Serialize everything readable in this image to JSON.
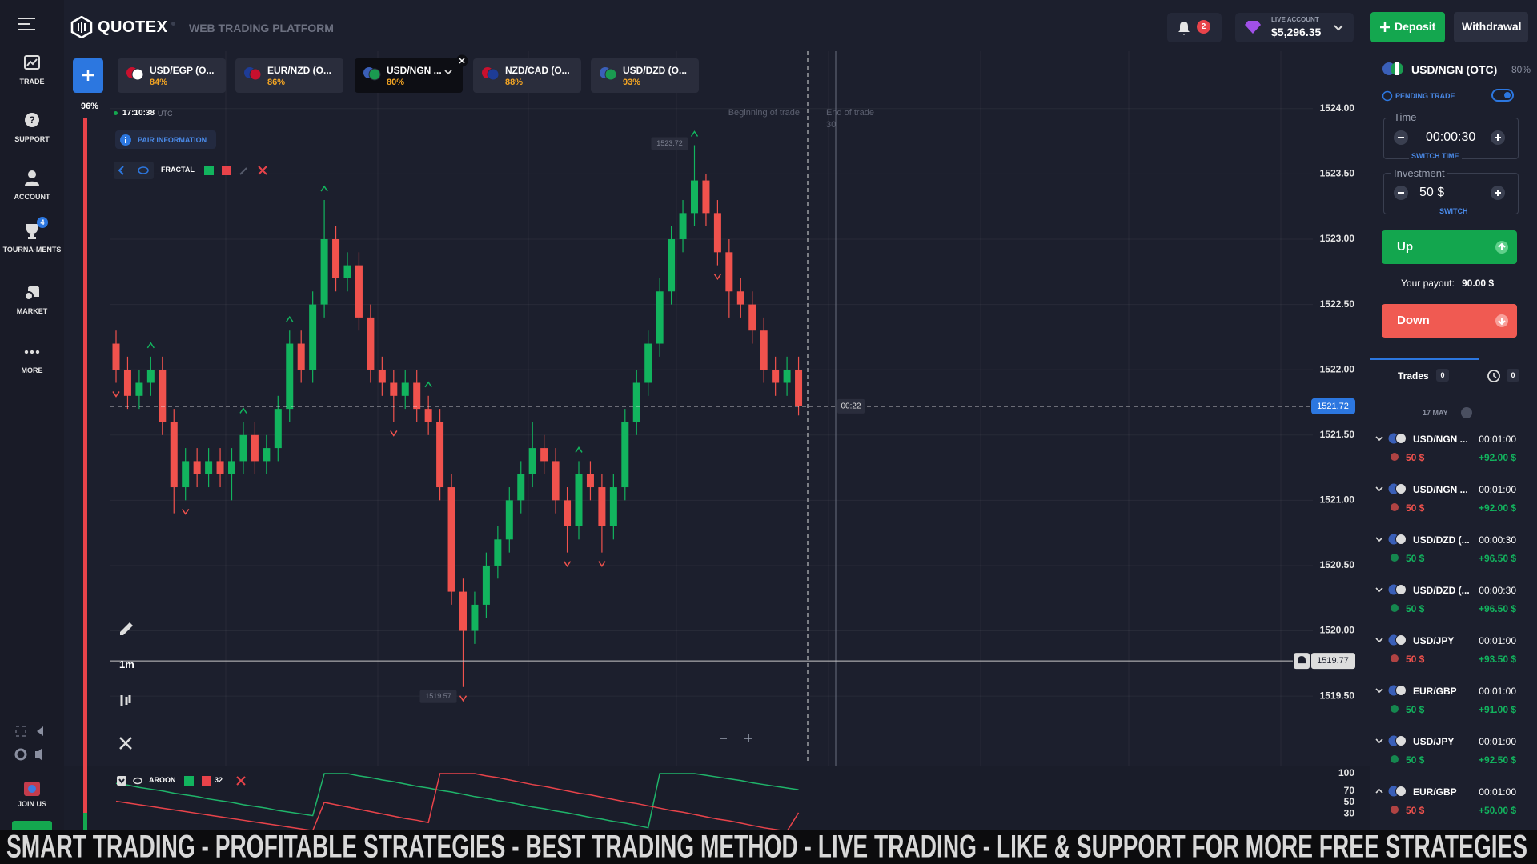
{
  "header": {
    "brand": "QUOTEX",
    "subtitle": "WEB TRADING PLATFORM",
    "notifications": "2",
    "account_label": "LIVE ACCOUNT",
    "balance": "$5,296.35",
    "deposit": "Deposit",
    "withdrawal": "Withdrawal"
  },
  "sidebar": {
    "items": [
      {
        "label": "TRADE"
      },
      {
        "label": "SUPPORT"
      },
      {
        "label": "ACCOUNT"
      },
      {
        "label": "TOURNA-MENTS",
        "badge": "4"
      },
      {
        "label": "MARKET"
      },
      {
        "label": "MORE"
      }
    ],
    "join_us": "JOIN US"
  },
  "tabs": {
    "active": 2,
    "items": [
      {
        "name": "USD/EGP (O...",
        "payout": "84%"
      },
      {
        "name": "EUR/NZD (O...",
        "payout": "86%"
      },
      {
        "name": "USD/NGN ...",
        "payout": "80%"
      },
      {
        "name": "NZD/CAD (O...",
        "payout": "88%"
      },
      {
        "name": "USD/DZD (O...",
        "payout": "93%"
      }
    ]
  },
  "chart": {
    "progress": "96%",
    "time": "17:10:38",
    "timezone": "UTC",
    "pair_info": "PAIR INFORMATION",
    "indicator": "FRACTAL",
    "timeframe": "1m",
    "beginning": "Beginning of trade",
    "end": "End of trade",
    "duration": "30",
    "timer": "00:22",
    "current": 1521.72,
    "alert": 1519.77,
    "up_color": "#12b45e",
    "down_color": "#f0524d",
    "ylim": [
      1518.98,
      1524.44
    ],
    "yticks": [
      {
        "value": 1524,
        "label": "1524.00"
      },
      {
        "value": 1523.5,
        "label": "1523.50"
      },
      {
        "value": 1523,
        "label": "1523.00"
      },
      {
        "value": 1522.5,
        "label": "1522.50"
      },
      {
        "value": 1522,
        "label": "1522.00"
      },
      {
        "value": 1521.5,
        "label": "1521.50"
      },
      {
        "value": 1521,
        "label": "1521.00"
      },
      {
        "value": 1520.5,
        "label": "1520.50"
      },
      {
        "value": 1520,
        "label": "1520.00"
      },
      {
        "value": 1519.5,
        "label": "1519.50"
      }
    ],
    "ohlc": [
      [
        1522.2,
        1522.3,
        1521.9,
        1522.0
      ],
      [
        1522.0,
        1522.1,
        1521.7,
        1521.8
      ],
      [
        1521.8,
        1522.0,
        1521.7,
        1521.9
      ],
      [
        1521.9,
        1522.1,
        1521.8,
        1522.0
      ],
      [
        1522.0,
        1522.1,
        1521.5,
        1521.6
      ],
      [
        1521.6,
        1521.7,
        1520.9,
        1521.1
      ],
      [
        1521.1,
        1521.4,
        1521.0,
        1521.3
      ],
      [
        1521.3,
        1521.4,
        1521.1,
        1521.2
      ],
      [
        1521.2,
        1521.4,
        1521.1,
        1521.3
      ],
      [
        1521.3,
        1521.4,
        1521.1,
        1521.2
      ],
      [
        1521.2,
        1521.4,
        1521.0,
        1521.3
      ],
      [
        1521.3,
        1521.6,
        1521.2,
        1521.5
      ],
      [
        1521.5,
        1521.6,
        1521.2,
        1521.3
      ],
      [
        1521.3,
        1521.5,
        1521.2,
        1521.4
      ],
      [
        1521.4,
        1521.8,
        1521.3,
        1521.7
      ],
      [
        1521.7,
        1522.3,
        1521.6,
        1522.2
      ],
      [
        1522.2,
        1522.3,
        1521.9,
        1522.0
      ],
      [
        1522.0,
        1522.6,
        1521.9,
        1522.5
      ],
      [
        1522.5,
        1523.3,
        1522.4,
        1523.0
      ],
      [
        1523.0,
        1523.1,
        1522.6,
        1522.7
      ],
      [
        1522.7,
        1522.9,
        1522.6,
        1522.8
      ],
      [
        1522.8,
        1522.9,
        1522.3,
        1522.4
      ],
      [
        1522.4,
        1522.5,
        1521.9,
        1522.0
      ],
      [
        1522.0,
        1522.1,
        1521.8,
        1521.9
      ],
      [
        1521.9,
        1522.0,
        1521.6,
        1521.8
      ],
      [
        1521.8,
        1522.0,
        1521.7,
        1521.9
      ],
      [
        1521.9,
        1522.0,
        1521.6,
        1521.7
      ],
      [
        1521.7,
        1521.8,
        1521.5,
        1521.6
      ],
      [
        1521.6,
        1521.7,
        1521.0,
        1521.1
      ],
      [
        1521.1,
        1521.2,
        1520.2,
        1520.3
      ],
      [
        1520.3,
        1520.4,
        1519.57,
        1520.0
      ],
      [
        1520.0,
        1520.3,
        1519.9,
        1520.2
      ],
      [
        1520.2,
        1520.6,
        1520.1,
        1520.5
      ],
      [
        1520.5,
        1520.8,
        1520.4,
        1520.7
      ],
      [
        1520.7,
        1521.1,
        1520.6,
        1521.0
      ],
      [
        1521.0,
        1521.3,
        1520.9,
        1521.2
      ],
      [
        1521.2,
        1521.6,
        1521.1,
        1521.4
      ],
      [
        1521.4,
        1521.5,
        1521.2,
        1521.3
      ],
      [
        1521.3,
        1521.4,
        1520.9,
        1521.0
      ],
      [
        1521.0,
        1521.1,
        1520.6,
        1520.8
      ],
      [
        1520.8,
        1521.3,
        1520.7,
        1521.2
      ],
      [
        1521.2,
        1521.3,
        1521.0,
        1521.1
      ],
      [
        1521.1,
        1521.2,
        1520.6,
        1520.8
      ],
      [
        1520.8,
        1521.2,
        1520.7,
        1521.1
      ],
      [
        1521.1,
        1521.7,
        1521.0,
        1521.6
      ],
      [
        1521.6,
        1522.0,
        1521.5,
        1521.9
      ],
      [
        1521.9,
        1522.3,
        1521.8,
        1522.2
      ],
      [
        1522.2,
        1522.7,
        1522.1,
        1522.6
      ],
      [
        1522.6,
        1523.1,
        1522.5,
        1523.0
      ],
      [
        1523.0,
        1523.3,
        1522.9,
        1523.2
      ],
      [
        1523.2,
        1523.72,
        1523.1,
        1523.45
      ],
      [
        1523.45,
        1523.5,
        1523.1,
        1523.2
      ],
      [
        1523.2,
        1523.3,
        1522.8,
        1522.9
      ],
      [
        1522.9,
        1523.0,
        1522.4,
        1522.6
      ],
      [
        1522.6,
        1522.7,
        1522.4,
        1522.5
      ],
      [
        1522.5,
        1522.6,
        1522.2,
        1522.3
      ],
      [
        1522.3,
        1522.4,
        1521.9,
        1522.0
      ],
      [
        1522.0,
        1522.1,
        1521.8,
        1521.9
      ],
      [
        1521.9,
        1522.1,
        1521.8,
        1522.0
      ],
      [
        1522.0,
        1522.1,
        1521.65,
        1521.72
      ]
    ],
    "aroon": {
      "name": "AROON",
      "period": 32,
      "ylim": [
        0,
        100
      ],
      "yticks": [
        100,
        70,
        50,
        30
      ],
      "up": {
        "color": "#1fb46a",
        "values": [
          83,
          80,
          76,
          73,
          70,
          66,
          63,
          60,
          56,
          53,
          50,
          46,
          43,
          40,
          36,
          33,
          30,
          27,
          100,
          100,
          100,
          96,
          93,
          89,
          86,
          82,
          78,
          75,
          71,
          68,
          64,
          60,
          57,
          53,
          50,
          46,
          42,
          39,
          35,
          32,
          28,
          24,
          21,
          17,
          14,
          10,
          6,
          100,
          100,
          100,
          100,
          97,
          94,
          91,
          88,
          84,
          81,
          78,
          75,
          72
        ]
      },
      "down": {
        "color": "#e8434a",
        "values": [
          52,
          49,
          46,
          43,
          40,
          37,
          34,
          31,
          28,
          25,
          22,
          19,
          16,
          13,
          10,
          7,
          4,
          1,
          50,
          46,
          42,
          38,
          34,
          30,
          26,
          22,
          19,
          15,
          100,
          100,
          100,
          100,
          96,
          93,
          89,
          85,
          81,
          78,
          74,
          70,
          66,
          63,
          59,
          55,
          51,
          48,
          44,
          40,
          36,
          33,
          29,
          25,
          21,
          18,
          14,
          10,
          6,
          3,
          0,
          32
        ]
      }
    }
  },
  "panel": {
    "pair": "USD/NGN (OTC)",
    "payout": "80%",
    "pending": "PENDING TRADE",
    "time_label": "Time",
    "time": "00:00:30",
    "switch_time": "SWITCH TIME",
    "investment_label": "Investment",
    "investment": "50 $",
    "switch": "SWITCH",
    "up": "Up",
    "payout_label": "Your payout:",
    "payout_value": "90.00 $",
    "down": "Down",
    "trades_tab": "Trades",
    "trades_count": 0,
    "history_count": 0,
    "date": "17 MAY",
    "trades": [
      {
        "pair": "USD/NGN ...",
        "duration": "00:01:00",
        "amount": "50 $",
        "profit": "+92.00 $",
        "color": "#f0524d"
      },
      {
        "pair": "USD/NGN ...",
        "duration": "00:01:00",
        "amount": "50 $",
        "profit": "+92.00 $",
        "color": "#f0524d"
      },
      {
        "pair": "USD/DZD (...",
        "duration": "00:00:30",
        "amount": "50 $",
        "profit": "+96.50 $",
        "color": "#12b45e"
      },
      {
        "pair": "USD/DZD (...",
        "duration": "00:00:30",
        "amount": "50 $",
        "profit": "+96.50 $",
        "color": "#12b45e"
      },
      {
        "pair": "USD/JPY",
        "duration": "00:01:00",
        "amount": "50 $",
        "profit": "+93.50 $",
        "color": "#f0524d"
      },
      {
        "pair": "EUR/GBP",
        "duration": "00:01:00",
        "amount": "50 $",
        "profit": "+91.00 $",
        "color": "#12b45e"
      },
      {
        "pair": "USD/JPY",
        "duration": "00:01:00",
        "amount": "50 $",
        "profit": "+92.50 $",
        "color": "#12b45e"
      },
      {
        "pair": "EUR/GBP",
        "duration": "00:01:00",
        "amount": "50 $",
        "profit": "+50.00 $",
        "color": "#f0524d"
      }
    ]
  },
  "banner": "SMART TRADING - PROFITABLE STRATEGIES - BEST TRADING METHOD - LIVE TRADING - LIKE & SUPPORT FOR MORE FREE STRATEGIES"
}
